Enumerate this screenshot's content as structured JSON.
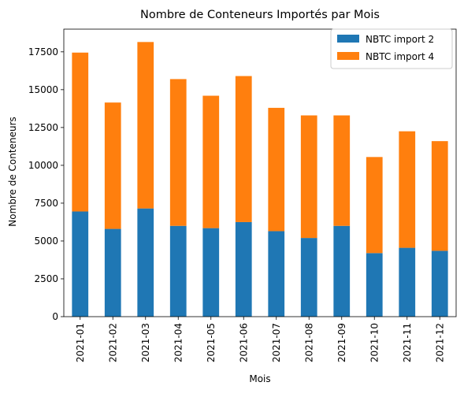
{
  "chart_data": {
    "type": "bar",
    "stacked": true,
    "title": "Nombre de Conteneurs Importés par Mois",
    "xlabel": "Mois",
    "ylabel": "Nombre de Conteneurs",
    "categories": [
      "2021-01",
      "2021-02",
      "2021-03",
      "2021-04",
      "2021-05",
      "2021-06",
      "2021-07",
      "2021-08",
      "2021-09",
      "2021-10",
      "2021-11",
      "2021-12"
    ],
    "series": [
      {
        "name": "NBTC import 2",
        "color": "#1f77b4",
        "values": [
          6950,
          5800,
          7150,
          6000,
          5850,
          6250,
          5650,
          5200,
          6000,
          4200,
          4550,
          4350
        ]
      },
      {
        "name": "NBTC import 4",
        "color": "#ff7f0e",
        "values": [
          10500,
          8350,
          11000,
          9700,
          8750,
          9650,
          8150,
          8100,
          7300,
          6350,
          7700,
          7250
        ]
      }
    ],
    "ylim": [
      0,
      19000
    ],
    "yticks": [
      0,
      2500,
      5000,
      7500,
      10000,
      12500,
      15000,
      17500
    ],
    "ytick_labels": [
      "0",
      "2500",
      "5000",
      "7500",
      "10000",
      "12500",
      "15000",
      "17500"
    ],
    "grid": false,
    "legend_position": "top-right"
  }
}
